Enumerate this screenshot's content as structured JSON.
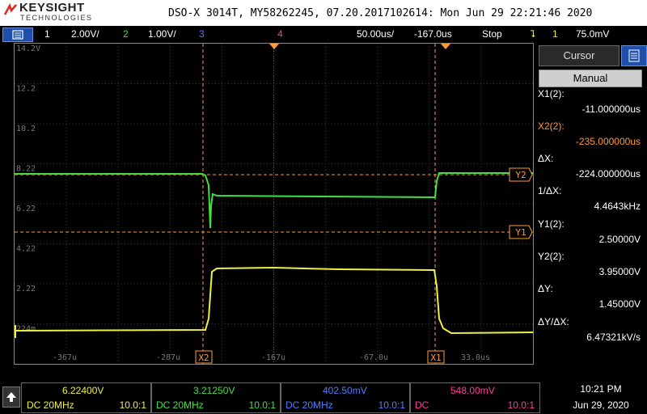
{
  "brand": {
    "name": "KEYSIGHT",
    "sub": "TECHNOLOGIES"
  },
  "title": "DSO-X 3014T, MY58262245, 07.20.2017102614: Mon Jun 29 22:21:46 2020",
  "topbar": {
    "ch1_num": "1",
    "ch1_scale": "2.00V/",
    "ch2_num": "2",
    "ch2_scale": "1.00V/",
    "ch3_num": "3",
    "ch4_num": "4",
    "timebase": "50.00us/",
    "delay": "-167.0us",
    "run_state": "Stop",
    "trig_source": "1",
    "trig_level": "75.0mV"
  },
  "colors": {
    "ch1": "#f0f040",
    "ch2": "#40e040",
    "ch3": "#4f7cff",
    "ch4": "#ff3aa0",
    "cursor": "#ff9b3a"
  },
  "grid": {
    "y_labels": [
      "14.2V",
      "12.2",
      "10.2",
      "8.22",
      "6.22",
      "4.22",
      "2.22",
      "224m"
    ],
    "x_labels": [
      "-367u",
      "-287u",
      "-167u",
      "-67.0u",
      "33.0us"
    ],
    "cursor_tags": {
      "x1": "X1",
      "x2": "X2",
      "y1": "Y1",
      "y2": "Y2",
      "ground": "1"
    }
  },
  "panel": {
    "tab": "Cursor",
    "mode": "Manual",
    "x1_label": "X1(2):",
    "x1_value": "-11.000000us",
    "x2_label": "X2(2):",
    "x2_value": "-235.000000us",
    "dx_label": "ΔX:",
    "dx_value": "-224.000000us",
    "inv_dx_label": "1/ΔX:",
    "inv_dx_value": "4.4643kHz",
    "y1_label": "Y1(2):",
    "y1_value": "2.50000V",
    "y2_label": "Y2(2):",
    "y2_value": "3.95000V",
    "dy_label": "ΔY:",
    "dy_value": "1.45000V",
    "dydx_label": "ΔY/ΔX:",
    "dydx_value": "6.47321kV/s"
  },
  "channels": [
    {
      "value": "6.22400V",
      "coupling": "DC 20MHz",
      "probe": "10.0:1"
    },
    {
      "value": "3.21250V",
      "coupling": "DC 20MHz",
      "probe": "10.0:1"
    },
    {
      "value": "402.50mV",
      "coupling": "DC 20MHz",
      "probe": "10.0:1"
    },
    {
      "value": "548.00mV",
      "coupling": "DC",
      "probe": "10.0:1"
    }
  ],
  "clock": {
    "time": "10:21 PM",
    "date": "Jun 29, 2020"
  }
}
